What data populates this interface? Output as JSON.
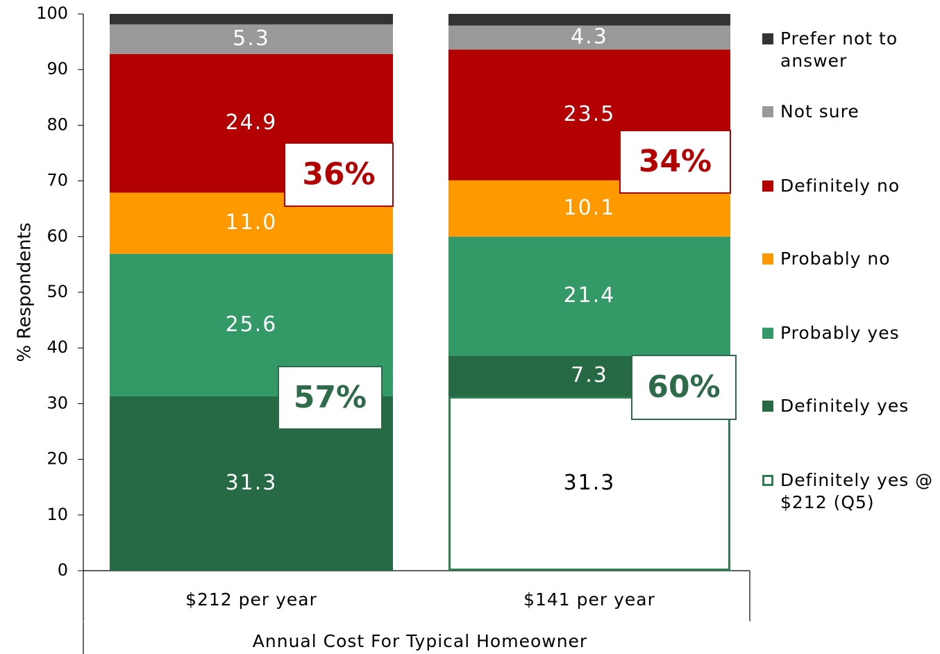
{
  "chart_data": {
    "type": "stacked_bar",
    "y_label": "% Respondents",
    "x_label": "Annual Cost For Typical Homeowner",
    "categories": [
      "$212 per year",
      "$141 per year"
    ],
    "ylim": [
      0,
      100
    ],
    "yticks": [
      0,
      10,
      20,
      30,
      40,
      50,
      60,
      70,
      80,
      90,
      100
    ],
    "series": [
      {
        "name": "Definitely yes @ $212 (Q5)",
        "color": "#2e7d4f",
        "fill": "#ffffff",
        "values": [
          null,
          31.3
        ],
        "value_labels": [
          null,
          "31.3"
        ]
      },
      {
        "name": "Definitely yes",
        "color": "#256a45",
        "values": [
          31.3,
          7.3
        ],
        "value_labels": [
          "31.3",
          "7.3"
        ]
      },
      {
        "name": "Probably yes",
        "color": "#339966",
        "values": [
          25.6,
          21.4
        ],
        "value_labels": [
          "25.6",
          "21.4"
        ]
      },
      {
        "name": "Probably no",
        "color": "#ff9900",
        "values": [
          11.0,
          10.1
        ],
        "value_labels": [
          "11.0",
          "10.1"
        ]
      },
      {
        "name": "Definitely no",
        "color": "#b30000",
        "values": [
          24.9,
          23.5
        ],
        "value_labels": [
          "24.9",
          "23.5"
        ]
      },
      {
        "name": "Not sure",
        "color": "#999999",
        "values": [
          5.3,
          4.3
        ],
        "value_labels": [
          "5.3",
          "4.3"
        ]
      },
      {
        "name": "Prefer not to answer",
        "color": "#333333",
        "values": [
          1.9,
          2.1
        ]
      }
    ],
    "annotations": [
      {
        "text": "36%",
        "color": "#b30000"
      },
      {
        "text": "57%",
        "color": "#2e6b4a"
      },
      {
        "text": "34%",
        "color": "#b30000"
      },
      {
        "text": "60%",
        "color": "#2e6b4a"
      }
    ]
  }
}
